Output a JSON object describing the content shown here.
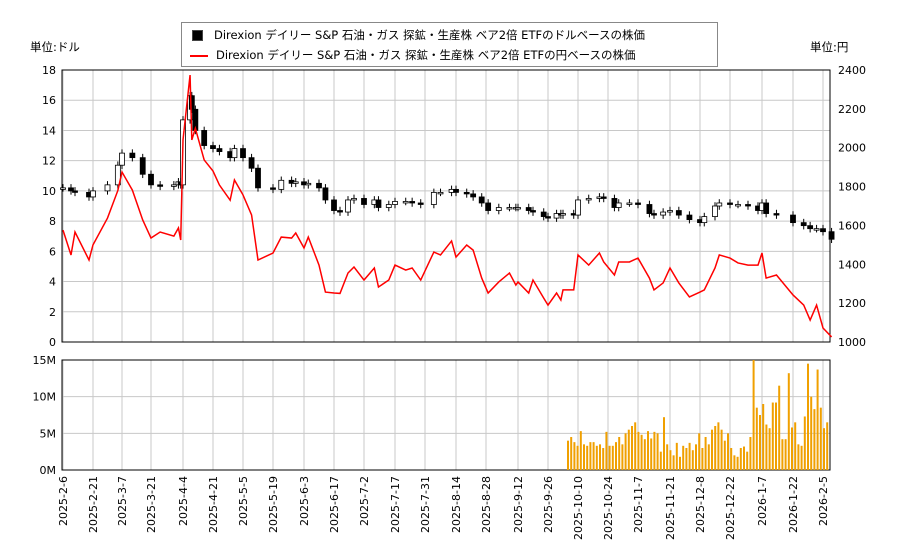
{
  "colors": {
    "usd": "#000000",
    "jpy": "#ff0000",
    "volume": "#f0a000",
    "grid": "#c8c8c8"
  },
  "units": {
    "left": "単位:ドル",
    "right": "単位:円"
  },
  "legend": [
    {
      "marker": "square",
      "label": "Direxion デイリー S&P 石油・ガス 探鉱・生産株 ベア2倍 ETFのドルベースの株価"
    },
    {
      "marker": "line",
      "label": "Direxion デイリー S&P 石油・ガス 探鉱・生産株 ベア2倍 ETFの円ベースの株価"
    }
  ],
  "chart_data": {
    "type": "candlestick+line+bar",
    "legend_position": "top-center",
    "grid": true,
    "left_axis": {
      "range": [
        0,
        18
      ],
      "ticks": [
        "0",
        "2",
        "4",
        "6",
        "8",
        "10",
        "12",
        "14",
        "16",
        "18"
      ]
    },
    "right_axis": {
      "range": [
        1000,
        2400
      ],
      "ticks": [
        "1000",
        "1200",
        "1400",
        "1600",
        "1800",
        "2000",
        "2200",
        "2400"
      ]
    },
    "volume_axis": {
      "range": [
        0,
        15
      ],
      "ticks": [
        "0M",
        "5M",
        "10M",
        "15M"
      ]
    },
    "x_ticks": [
      "2025-2-6",
      "2025-2-21",
      "2025-3-7",
      "2025-3-21",
      "2025-4-4",
      "2025-4-21",
      "2025-5-5",
      "2025-5-19",
      "2025-6-3",
      "2025-6-17",
      "2025-7-2",
      "2025-7-17",
      "2025-7-31",
      "2025-8-14",
      "2025-8-28",
      "2025-9-12",
      "2025-9-26",
      "2025-10-10",
      "2025-10-24",
      "2025-11-7",
      "2025-11-21",
      "2025-12-8",
      "2025-12-22",
      "2026-1-7",
      "2026-1-22",
      "2026-2-5"
    ],
    "series_columns": [
      "date",
      "usd",
      "jpy"
    ],
    "series": [
      [
        "2025-02-06",
        10.2,
        1576
      ],
      [
        "2025-02-10",
        10.0,
        1448
      ],
      [
        "2025-02-12",
        9.9,
        1566
      ],
      [
        "2025-02-19",
        9.6,
        1422
      ],
      [
        "2025-02-21",
        10.0,
        1500
      ],
      [
        "2025-02-28",
        10.4,
        1638
      ],
      [
        "2025-03-05",
        11.7,
        1780
      ],
      [
        "2025-03-07",
        12.5,
        1875
      ],
      [
        "2025-03-12",
        12.2,
        1782
      ],
      [
        "2025-03-17",
        11.1,
        1628
      ],
      [
        "2025-03-21",
        10.4,
        1535
      ],
      [
        "2025-03-25",
        10.3,
        1566
      ],
      [
        "2025-03-31",
        10.4,
        1545
      ],
      [
        "2025-04-02",
        10.6,
        1587
      ],
      [
        "2025-04-03",
        10.4,
        1525
      ],
      [
        "2025-04-04",
        14.7,
        2040
      ],
      [
        "2025-04-08",
        16.3,
        2374
      ],
      [
        "2025-04-09",
        15.4,
        2040
      ],
      [
        "2025-04-11",
        14.0,
        2100
      ],
      [
        "2025-04-16",
        13.0,
        1937
      ],
      [
        "2025-04-21",
        12.8,
        1880
      ],
      [
        "2025-04-24",
        12.6,
        1808
      ],
      [
        "2025-04-29",
        12.2,
        1730
      ],
      [
        "2025-05-01",
        12.8,
        1834
      ],
      [
        "2025-05-05",
        12.2,
        1757
      ],
      [
        "2025-05-09",
        11.5,
        1654
      ],
      [
        "2025-05-12",
        10.2,
        1422
      ],
      [
        "2025-05-19",
        10.1,
        1458
      ],
      [
        "2025-05-23",
        10.7,
        1540
      ],
      [
        "2025-05-28",
        10.5,
        1535
      ],
      [
        "2025-05-30",
        10.6,
        1561
      ],
      [
        "2025-06-03",
        10.4,
        1484
      ],
      [
        "2025-06-05",
        10.5,
        1540
      ],
      [
        "2025-06-10",
        10.2,
        1396
      ],
      [
        "2025-06-13",
        9.4,
        1257
      ],
      [
        "2025-06-17",
        8.7,
        1252
      ],
      [
        "2025-06-20",
        8.6,
        1250
      ],
      [
        "2025-06-24",
        9.4,
        1355
      ],
      [
        "2025-06-27",
        9.5,
        1386
      ],
      [
        "2025-07-02",
        9.1,
        1319
      ],
      [
        "2025-07-07",
        9.4,
        1381
      ],
      [
        "2025-07-09",
        8.9,
        1283
      ],
      [
        "2025-07-14",
        9.1,
        1319
      ],
      [
        "2025-07-17",
        9.3,
        1396
      ],
      [
        "2025-07-22",
        9.3,
        1370
      ],
      [
        "2025-07-25",
        9.2,
        1381
      ],
      [
        "2025-07-29",
        9.1,
        1319
      ],
      [
        "2025-08-04",
        9.9,
        1463
      ],
      [
        "2025-08-07",
        9.9,
        1448
      ],
      [
        "2025-08-12",
        10.1,
        1520
      ],
      [
        "2025-08-14",
        9.9,
        1437
      ],
      [
        "2025-08-19",
        9.8,
        1499
      ],
      [
        "2025-08-22",
        9.6,
        1473
      ],
      [
        "2025-08-26",
        9.2,
        1329
      ],
      [
        "2025-08-29",
        8.7,
        1252
      ],
      [
        "2025-09-03",
        8.9,
        1309
      ],
      [
        "2025-09-08",
        8.9,
        1355
      ],
      [
        "2025-09-11",
        8.9,
        1293
      ],
      [
        "2025-09-12",
        8.9,
        1309
      ],
      [
        "2025-09-17",
        8.7,
        1252
      ],
      [
        "2025-09-19",
        8.6,
        1319
      ],
      [
        "2025-09-24",
        8.3,
        1226
      ],
      [
        "2025-09-26",
        8.2,
        1190
      ],
      [
        "2025-09-30",
        8.5,
        1252
      ],
      [
        "2025-10-02",
        8.4,
        1216
      ],
      [
        "2025-10-03",
        8.5,
        1268
      ],
      [
        "2025-10-08",
        8.4,
        1268
      ],
      [
        "2025-10-10",
        9.4,
        1448
      ],
      [
        "2025-10-15",
        9.5,
        1396
      ],
      [
        "2025-10-20",
        9.6,
        1458
      ],
      [
        "2025-10-22",
        9.5,
        1412
      ],
      [
        "2025-10-27",
        8.9,
        1345
      ],
      [
        "2025-10-29",
        9.2,
        1412
      ],
      [
        "2025-11-03",
        9.2,
        1412
      ],
      [
        "2025-11-07",
        9.1,
        1432
      ],
      [
        "2025-11-12",
        8.5,
        1329
      ],
      [
        "2025-11-14",
        8.4,
        1268
      ],
      [
        "2025-11-18",
        8.6,
        1304
      ],
      [
        "2025-11-21",
        8.7,
        1381
      ],
      [
        "2025-11-26",
        8.4,
        1304
      ],
      [
        "2025-12-02",
        8.1,
        1232
      ],
      [
        "2025-12-08",
        7.9,
        1257
      ],
      [
        "2025-12-10",
        8.3,
        1268
      ],
      [
        "2025-12-15",
        9.0,
        1381
      ],
      [
        "2025-12-17",
        9.2,
        1448
      ],
      [
        "2025-12-22",
        9.1,
        1432
      ],
      [
        "2025-12-26",
        9.1,
        1407
      ],
      [
        "2025-12-31",
        9.0,
        1396
      ],
      [
        "2026-01-05",
        8.7,
        1396
      ],
      [
        "2026-01-07",
        9.2,
        1458
      ],
      [
        "2026-01-09",
        8.5,
        1329
      ],
      [
        "2026-01-14",
        8.4,
        1345
      ],
      [
        "2026-01-22",
        7.9,
        1242
      ],
      [
        "2026-01-27",
        7.7,
        1190
      ],
      [
        "2026-01-30",
        7.5,
        1113
      ],
      [
        "2026-02-02",
        7.5,
        1190
      ],
      [
        "2026-02-05",
        7.3,
        1072
      ],
      [
        "2026-02-09",
        6.8,
        1026
      ]
    ],
    "volume": {
      "start": "2025-10-06",
      "unit": "M",
      "values": [
        4,
        4.5,
        3.8,
        3.3,
        5.3,
        3.5,
        3.3,
        3.8,
        3.8,
        3.3,
        3.5,
        3,
        5.2,
        3.3,
        3.3,
        3.8,
        4.5,
        3.5,
        5,
        5.5,
        6,
        6.5,
        5.2,
        4.8,
        4.2,
        5.3,
        4.3,
        5.2,
        5,
        2.5,
        7.2,
        3.5,
        2.7,
        2,
        3.7,
        1.8,
        3.3,
        3,
        3.7,
        2.7,
        3.5,
        5,
        3,
        4.5,
        3.5,
        5.5,
        6,
        6.5,
        5.5,
        4,
        5,
        3,
        2,
        1.8,
        3,
        3.2,
        2.5,
        4.5,
        15,
        8.5,
        7.5,
        9,
        6.2,
        5.7,
        9.2,
        9.2,
        11.5,
        4.2,
        4.2,
        13.2,
        5.8,
        6.5,
        3.5,
        3.3,
        7.3,
        14.5,
        10,
        8.3,
        13.7,
        8.5,
        5.7,
        6.5
      ]
    }
  }
}
